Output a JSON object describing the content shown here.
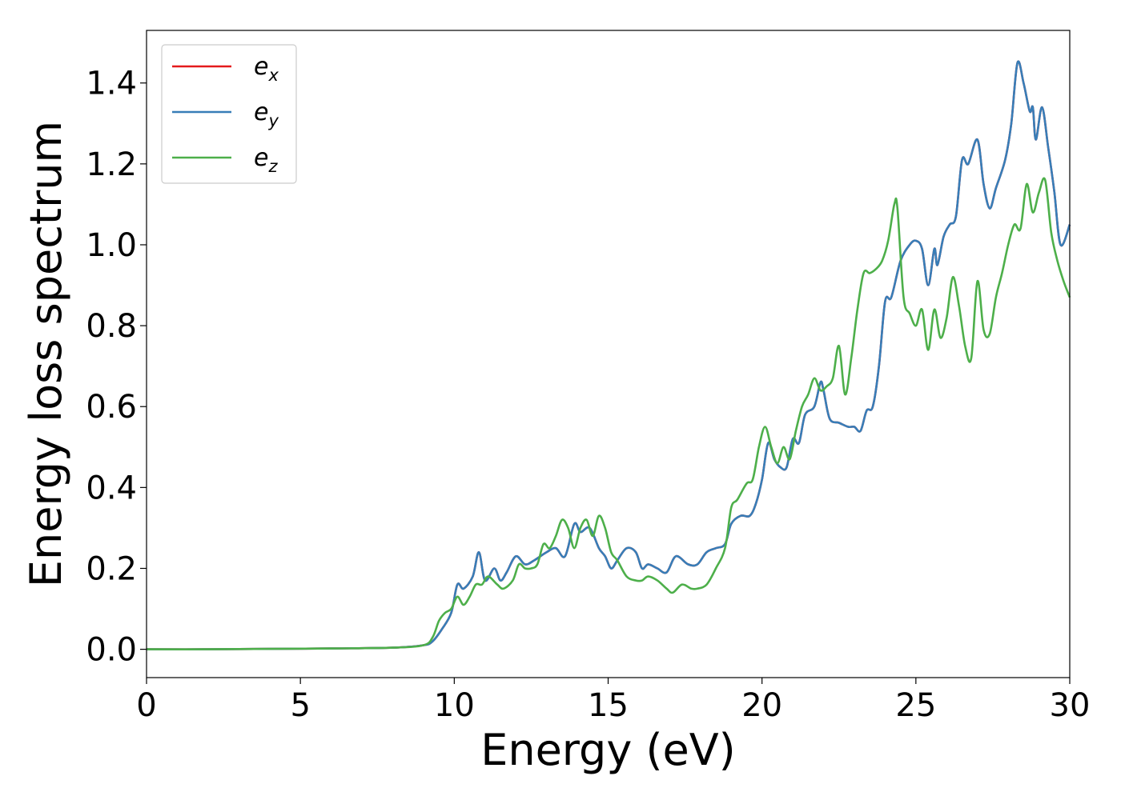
{
  "chart_data": {
    "type": "line",
    "title": "",
    "xlabel": "Energy (eV)",
    "ylabel": "Energy loss spectrum",
    "xlim": [
      0,
      30
    ],
    "ylim": [
      -0.07,
      1.53
    ],
    "xticks": [
      0,
      5,
      10,
      15,
      20,
      25,
      30
    ],
    "xtick_labels": [
      "0",
      "5",
      "10",
      "15",
      "20",
      "25",
      "30"
    ],
    "yticks": [
      0.0,
      0.2,
      0.4,
      0.6,
      0.8,
      1.0,
      1.2,
      1.4
    ],
    "ytick_labels": [
      "0.0",
      "0.2",
      "0.4",
      "0.6",
      "0.8",
      "1.0",
      "1.2",
      "1.4"
    ],
    "grid": false,
    "legend_position": "top-left",
    "series": [
      {
        "name": "e_x",
        "base": "e",
        "sub": "x",
        "color": "#e41a1c",
        "x": [
          0,
          2,
          4,
          6,
          8,
          9,
          9.3,
          9.6,
          9.9,
          10.1,
          10.3,
          10.6,
          10.8,
          11.0,
          11.3,
          11.5,
          11.7,
          12.0,
          12.3,
          12.6,
          13.0,
          13.3,
          13.6,
          13.9,
          14.1,
          14.4,
          14.7,
          14.9,
          15.1,
          15.3,
          15.6,
          15.9,
          16.1,
          16.3,
          16.6,
          16.9,
          17.2,
          17.6,
          17.9,
          18.2,
          18.5,
          18.8,
          19.0,
          19.3,
          19.6,
          19.8,
          20.0,
          20.2,
          20.4,
          20.6,
          20.8,
          21.0,
          21.2,
          21.4,
          21.7,
          21.9,
          22.0,
          22.2,
          22.5,
          22.8,
          23.0,
          23.2,
          23.4,
          23.6,
          23.8,
          24.0,
          24.2,
          24.5,
          24.8,
          25.0,
          25.2,
          25.4,
          25.6,
          25.7,
          25.9,
          26.1,
          26.3,
          26.5,
          26.7,
          27.0,
          27.2,
          27.4,
          27.6,
          27.9,
          28.1,
          28.3,
          28.5,
          28.7,
          28.8,
          28.9,
          29.1,
          29.3,
          29.5,
          29.7,
          30.0
        ],
        "values": [
          0.0,
          0.0,
          0.001,
          0.002,
          0.004,
          0.01,
          0.02,
          0.05,
          0.09,
          0.16,
          0.15,
          0.18,
          0.24,
          0.17,
          0.2,
          0.17,
          0.19,
          0.23,
          0.21,
          0.22,
          0.24,
          0.25,
          0.23,
          0.31,
          0.29,
          0.3,
          0.25,
          0.23,
          0.2,
          0.22,
          0.25,
          0.24,
          0.2,
          0.21,
          0.2,
          0.19,
          0.23,
          0.21,
          0.21,
          0.24,
          0.25,
          0.26,
          0.31,
          0.33,
          0.33,
          0.36,
          0.42,
          0.51,
          0.47,
          0.45,
          0.45,
          0.52,
          0.51,
          0.58,
          0.6,
          0.66,
          0.64,
          0.57,
          0.56,
          0.55,
          0.55,
          0.54,
          0.59,
          0.6,
          0.7,
          0.86,
          0.87,
          0.96,
          1.0,
          1.01,
          0.99,
          0.9,
          0.99,
          0.95,
          1.02,
          1.05,
          1.07,
          1.21,
          1.2,
          1.26,
          1.15,
          1.09,
          1.14,
          1.21,
          1.3,
          1.45,
          1.4,
          1.33,
          1.34,
          1.26,
          1.34,
          1.24,
          1.13,
          1.0,
          1.05
        ]
      },
      {
        "name": "e_y",
        "base": "e",
        "sub": "y",
        "color": "#377eb8",
        "x": [
          0,
          2,
          4,
          6,
          8,
          9,
          9.3,
          9.6,
          9.9,
          10.1,
          10.3,
          10.6,
          10.8,
          11.0,
          11.3,
          11.5,
          11.7,
          12.0,
          12.3,
          12.6,
          13.0,
          13.3,
          13.6,
          13.9,
          14.1,
          14.4,
          14.7,
          14.9,
          15.1,
          15.3,
          15.6,
          15.9,
          16.1,
          16.3,
          16.6,
          16.9,
          17.2,
          17.6,
          17.9,
          18.2,
          18.5,
          18.8,
          19.0,
          19.3,
          19.6,
          19.8,
          20.0,
          20.2,
          20.4,
          20.6,
          20.8,
          21.0,
          21.2,
          21.4,
          21.7,
          21.9,
          22.0,
          22.2,
          22.5,
          22.8,
          23.0,
          23.2,
          23.4,
          23.6,
          23.8,
          24.0,
          24.2,
          24.5,
          24.8,
          25.0,
          25.2,
          25.4,
          25.6,
          25.7,
          25.9,
          26.1,
          26.3,
          26.5,
          26.7,
          27.0,
          27.2,
          27.4,
          27.6,
          27.9,
          28.1,
          28.3,
          28.5,
          28.7,
          28.8,
          28.9,
          29.1,
          29.3,
          29.5,
          29.7,
          30.0
        ],
        "values": [
          0.0,
          0.0,
          0.001,
          0.002,
          0.004,
          0.01,
          0.02,
          0.05,
          0.09,
          0.16,
          0.15,
          0.18,
          0.24,
          0.17,
          0.2,
          0.17,
          0.19,
          0.23,
          0.21,
          0.22,
          0.24,
          0.25,
          0.23,
          0.31,
          0.29,
          0.3,
          0.25,
          0.23,
          0.2,
          0.22,
          0.25,
          0.24,
          0.2,
          0.21,
          0.2,
          0.19,
          0.23,
          0.21,
          0.21,
          0.24,
          0.25,
          0.26,
          0.31,
          0.33,
          0.33,
          0.36,
          0.42,
          0.51,
          0.47,
          0.45,
          0.45,
          0.52,
          0.51,
          0.58,
          0.6,
          0.66,
          0.64,
          0.57,
          0.56,
          0.55,
          0.55,
          0.54,
          0.59,
          0.6,
          0.7,
          0.86,
          0.87,
          0.96,
          1.0,
          1.01,
          0.99,
          0.9,
          0.99,
          0.95,
          1.02,
          1.05,
          1.07,
          1.21,
          1.2,
          1.26,
          1.15,
          1.09,
          1.14,
          1.21,
          1.3,
          1.45,
          1.4,
          1.33,
          1.34,
          1.26,
          1.34,
          1.24,
          1.13,
          1.0,
          1.05
        ]
      },
      {
        "name": "e_z",
        "base": "e",
        "sub": "z",
        "color": "#4daf4a",
        "x": [
          0,
          2,
          4,
          6,
          8,
          9,
          9.3,
          9.5,
          9.7,
          9.9,
          10.1,
          10.3,
          10.5,
          10.7,
          10.9,
          11.1,
          11.4,
          11.6,
          11.9,
          12.1,
          12.3,
          12.5,
          12.7,
          12.9,
          13.1,
          13.3,
          13.5,
          13.7,
          13.9,
          14.1,
          14.3,
          14.5,
          14.7,
          14.9,
          15.1,
          15.3,
          15.6,
          15.9,
          16.1,
          16.3,
          16.6,
          16.9,
          17.1,
          17.4,
          17.7,
          17.9,
          18.2,
          18.5,
          18.8,
          19.0,
          19.2,
          19.5,
          19.7,
          19.9,
          20.1,
          20.3,
          20.5,
          20.7,
          20.9,
          21.1,
          21.3,
          21.5,
          21.7,
          21.9,
          22.1,
          22.3,
          22.5,
          22.7,
          22.9,
          23.1,
          23.3,
          23.5,
          23.7,
          23.9,
          24.1,
          24.3,
          24.4,
          24.6,
          24.8,
          25.0,
          25.2,
          25.4,
          25.6,
          25.8,
          26.0,
          26.2,
          26.4,
          26.6,
          26.8,
          27.0,
          27.2,
          27.4,
          27.6,
          27.8,
          28.0,
          28.2,
          28.4,
          28.6,
          28.8,
          29.0,
          29.2,
          29.4,
          29.6,
          29.8,
          30.0
        ],
        "values": [
          0.0,
          0.0,
          0.001,
          0.002,
          0.004,
          0.01,
          0.03,
          0.07,
          0.09,
          0.1,
          0.13,
          0.11,
          0.13,
          0.16,
          0.16,
          0.18,
          0.16,
          0.15,
          0.17,
          0.21,
          0.2,
          0.2,
          0.21,
          0.26,
          0.25,
          0.28,
          0.32,
          0.3,
          0.25,
          0.3,
          0.32,
          0.28,
          0.33,
          0.3,
          0.24,
          0.22,
          0.18,
          0.17,
          0.17,
          0.18,
          0.17,
          0.15,
          0.14,
          0.16,
          0.15,
          0.15,
          0.16,
          0.2,
          0.25,
          0.35,
          0.37,
          0.41,
          0.42,
          0.5,
          0.55,
          0.5,
          0.46,
          0.5,
          0.47,
          0.54,
          0.6,
          0.63,
          0.67,
          0.64,
          0.65,
          0.67,
          0.75,
          0.63,
          0.72,
          0.84,
          0.93,
          0.93,
          0.94,
          0.96,
          1.01,
          1.1,
          1.09,
          0.87,
          0.83,
          0.8,
          0.84,
          0.74,
          0.84,
          0.77,
          0.82,
          0.92,
          0.85,
          0.75,
          0.72,
          0.91,
          0.79,
          0.78,
          0.87,
          0.93,
          1.0,
          1.05,
          1.04,
          1.15,
          1.08,
          1.13,
          1.16,
          1.03,
          0.96,
          0.91,
          0.87
        ]
      }
    ]
  }
}
